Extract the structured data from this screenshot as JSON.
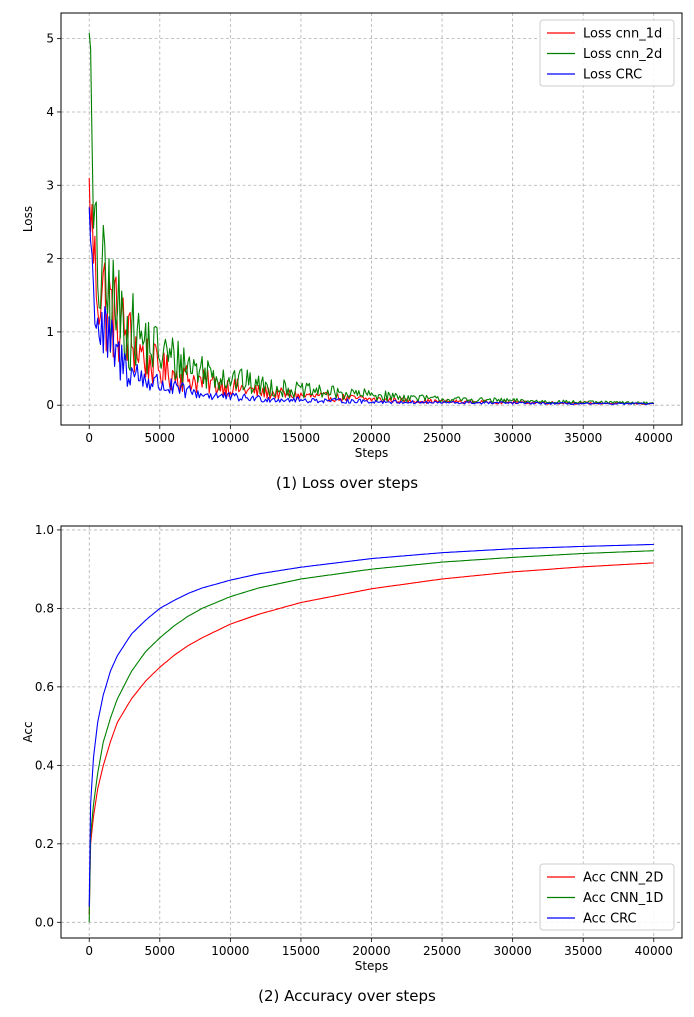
{
  "chart_data": [
    {
      "type": "line",
      "caption": "(1) Loss over steps",
      "xlabel": "Steps",
      "ylabel": "Loss",
      "xlim": [
        -2000,
        42000
      ],
      "ylim": [
        -0.27,
        5.35
      ],
      "xticks": [
        0,
        5000,
        10000,
        15000,
        20000,
        25000,
        30000,
        35000,
        40000
      ],
      "yticks": [
        0,
        1,
        2,
        3,
        4,
        5
      ],
      "grid": true,
      "legend_position": "top-right",
      "noisy": true,
      "series": [
        {
          "name": "Loss cnn_1d",
          "color": "#ff0000",
          "x": [
            0,
            300,
            600,
            1000,
            2000,
            3000,
            4000,
            5000,
            6000,
            8000,
            10000,
            12000,
            15000,
            18000,
            20000,
            23000,
            25000,
            30000,
            35000,
            40000
          ],
          "y": [
            3.1,
            2.1,
            1.8,
            1.5,
            1.15,
            0.85,
            0.65,
            0.48,
            0.42,
            0.32,
            0.25,
            0.18,
            0.13,
            0.1,
            0.08,
            0.06,
            0.05,
            0.04,
            0.03,
            0.02
          ]
        },
        {
          "name": "Loss cnn_2d",
          "color": "#008000",
          "x": [
            0,
            300,
            600,
            1000,
            2000,
            3000,
            4000,
            5000,
            6000,
            8000,
            10000,
            12000,
            15000,
            18000,
            20000,
            23000,
            25000,
            30000,
            35000,
            40000
          ],
          "y": [
            5.08,
            2.4,
            1.9,
            1.6,
            1.25,
            1.0,
            0.85,
            0.72,
            0.62,
            0.48,
            0.37,
            0.27,
            0.2,
            0.16,
            0.14,
            0.1,
            0.08,
            0.06,
            0.04,
            0.03
          ]
        },
        {
          "name": "Loss CRC",
          "color": "#0000ff",
          "x": [
            0,
            300,
            600,
            1000,
            2000,
            3000,
            4000,
            5000,
            6000,
            8000,
            10000,
            12000,
            15000,
            18000,
            20000,
            23000,
            25000,
            30000,
            35000,
            40000
          ],
          "y": [
            2.7,
            1.5,
            1.2,
            0.95,
            0.65,
            0.45,
            0.35,
            0.28,
            0.22,
            0.15,
            0.11,
            0.09,
            0.07,
            0.06,
            0.05,
            0.04,
            0.035,
            0.03,
            0.02,
            0.02
          ]
        }
      ]
    },
    {
      "type": "line",
      "caption": "(2) Accuracy over steps",
      "xlabel": "Steps",
      "ylabel": "Acc",
      "xlim": [
        -2000,
        42000
      ],
      "ylim": [
        -0.04,
        1.01
      ],
      "xticks": [
        0,
        5000,
        10000,
        15000,
        20000,
        25000,
        30000,
        35000,
        40000
      ],
      "yticks": [
        0.0,
        0.2,
        0.4,
        0.6,
        0.8,
        1.0
      ],
      "grid": true,
      "legend_position": "bottom-right",
      "noisy": false,
      "series": [
        {
          "name": "Acc CNN_2D",
          "color": "#ff0000",
          "x": [
            0,
            100,
            300,
            600,
            1000,
            1500,
            2000,
            3000,
            4000,
            5000,
            6000,
            7000,
            8000,
            10000,
            12000,
            15000,
            20000,
            25000,
            30000,
            35000,
            40000
          ],
          "y": [
            0.02,
            0.2,
            0.27,
            0.34,
            0.4,
            0.46,
            0.51,
            0.57,
            0.615,
            0.65,
            0.68,
            0.705,
            0.725,
            0.76,
            0.785,
            0.815,
            0.85,
            0.875,
            0.893,
            0.906,
            0.916
          ]
        },
        {
          "name": "Acc CNN_1D",
          "color": "#008000",
          "x": [
            0,
            100,
            300,
            600,
            1000,
            1500,
            2000,
            3000,
            4000,
            5000,
            6000,
            7000,
            8000,
            10000,
            12000,
            15000,
            20000,
            25000,
            30000,
            35000,
            40000
          ],
          "y": [
            0.0,
            0.22,
            0.3,
            0.38,
            0.46,
            0.52,
            0.57,
            0.64,
            0.69,
            0.725,
            0.755,
            0.78,
            0.8,
            0.83,
            0.852,
            0.875,
            0.9,
            0.918,
            0.93,
            0.94,
            0.947
          ]
        },
        {
          "name": "Acc CRC",
          "color": "#0000ff",
          "x": [
            0,
            100,
            300,
            600,
            1000,
            1500,
            2000,
            3000,
            4000,
            5000,
            6000,
            7000,
            8000,
            10000,
            12000,
            15000,
            20000,
            25000,
            30000,
            35000,
            40000
          ],
          "y": [
            0.04,
            0.3,
            0.42,
            0.51,
            0.58,
            0.64,
            0.68,
            0.735,
            0.77,
            0.8,
            0.82,
            0.838,
            0.852,
            0.872,
            0.888,
            0.905,
            0.927,
            0.942,
            0.952,
            0.958,
            0.963
          ]
        }
      ]
    }
  ]
}
